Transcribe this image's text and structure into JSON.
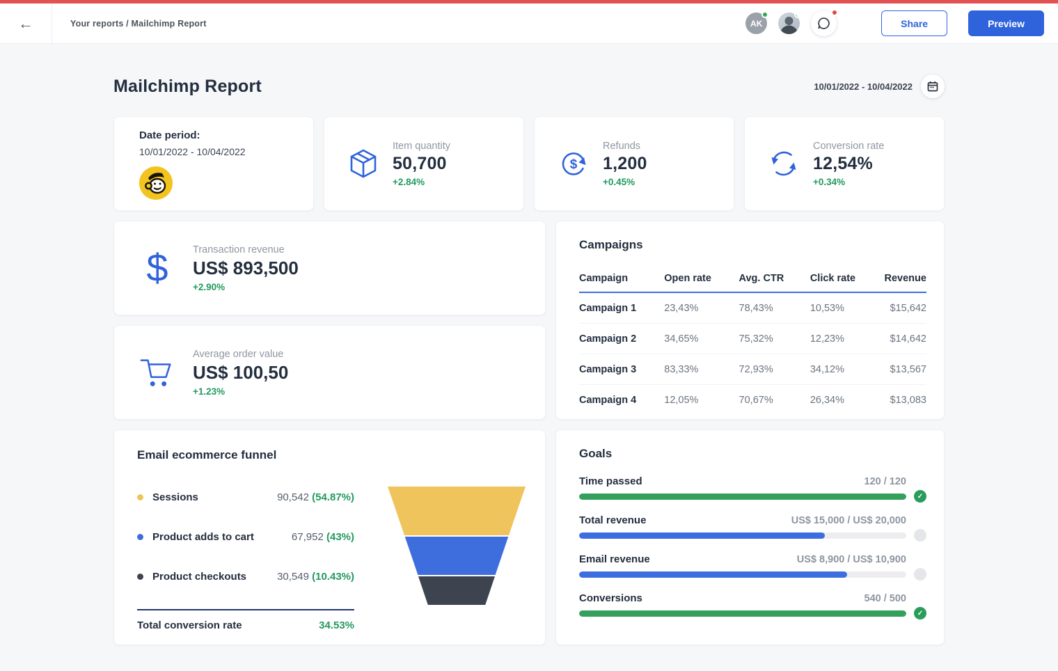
{
  "icons": {
    "back": "←",
    "check": "✓",
    "dollar": "$"
  },
  "header": {
    "breadcrumb": "Your reports / Mailchimp Report",
    "avatars": [
      {
        "initials": "AK"
      }
    ],
    "share_label": "Share",
    "preview_label": "Preview"
  },
  "report": {
    "title": "Mailchimp Report",
    "date_range": "10/01/2022 - 10/04/2022"
  },
  "kpi_cards": [
    {
      "label": "Date period:",
      "value": "10/01/2022 - 10/04/2022",
      "icon": "mailchimp-logo"
    },
    {
      "label": "Item quantity",
      "value": "50,700",
      "delta": "+2.84%",
      "icon": "package-icon"
    },
    {
      "label": "Refunds",
      "value": "1,200",
      "delta": "+0.45%",
      "icon": "refund-icon"
    },
    {
      "label": "Conversion rate",
      "value": "12,54%",
      "delta": "+0.34%",
      "icon": "refresh-icon"
    }
  ],
  "revenue_cards": [
    {
      "label": "Transaction revenue",
      "value": "US$ 893,500",
      "delta": "+2.90%",
      "icon": "dollar-icon"
    },
    {
      "label": "Average order value",
      "value": "US$ 100,50",
      "delta": "+1.23%",
      "icon": "cart-icon"
    }
  ],
  "campaigns": {
    "title": "Campaigns",
    "columns": [
      "Campaign",
      "Open rate",
      "Avg. CTR",
      "Click rate",
      "Revenue"
    ],
    "rows": [
      [
        "Campaign 1",
        "23,43%",
        "78,43%",
        "10,53%",
        "$15,642"
      ],
      [
        "Campaign 2",
        "34,65%",
        "75,32%",
        "12,23%",
        "$14,642"
      ],
      [
        "Campaign 3",
        "83,33%",
        "72,93%",
        "34,12%",
        "$13,567"
      ],
      [
        "Campaign 4",
        "12,05%",
        "70,67%",
        "26,34%",
        "$13,083"
      ]
    ]
  },
  "funnel": {
    "title": "Email ecommerce funnel",
    "stages": [
      {
        "label": "Sessions",
        "value": "90,542",
        "percent": "(54.87%)",
        "color": "#f0c45c"
      },
      {
        "label": "Product adds to cart",
        "value": "67,952",
        "percent": "(43%)",
        "color": "#3e6edd"
      },
      {
        "label": "Product checkouts",
        "value": "30,549",
        "percent": "(10.43%)",
        "color": "#3d4450"
      }
    ],
    "total_label": "Total conversion rate",
    "total_value": "34.53%"
  },
  "goals": {
    "title": "Goals",
    "items": [
      {
        "label": "Time passed",
        "value": "120 / 120",
        "progress": 100,
        "color": "green",
        "status": "done"
      },
      {
        "label": "Total revenue",
        "value": "US$ 15,000 / US$ 20,000",
        "progress": 75,
        "color": "blue",
        "status": "pending"
      },
      {
        "label": "Email revenue",
        "value": "US$ 8,900 / US$ 10,900",
        "progress": 82,
        "color": "blue",
        "status": "pending"
      },
      {
        "label": "Conversions",
        "value": "540 / 500",
        "progress": 100,
        "color": "green",
        "status": "done"
      }
    ]
  },
  "chart_data": {
    "type": "area",
    "subtype": "funnel",
    "title": "Email ecommerce funnel",
    "categories": [
      "Sessions",
      "Product adds to cart",
      "Product checkouts"
    ],
    "values": [
      90542,
      67952,
      30549
    ],
    "percents": [
      54.87,
      43,
      10.43
    ],
    "total_conversion_rate": 34.53,
    "colors": [
      "#f0c45c",
      "#3e6edd",
      "#3d4450"
    ]
  },
  "colors": {
    "accent_blue": "#2f63dc",
    "green": "#229a5e",
    "red_strip": "#e25252",
    "text_dark": "#232e3f",
    "text_gray": "#8f97a1"
  }
}
